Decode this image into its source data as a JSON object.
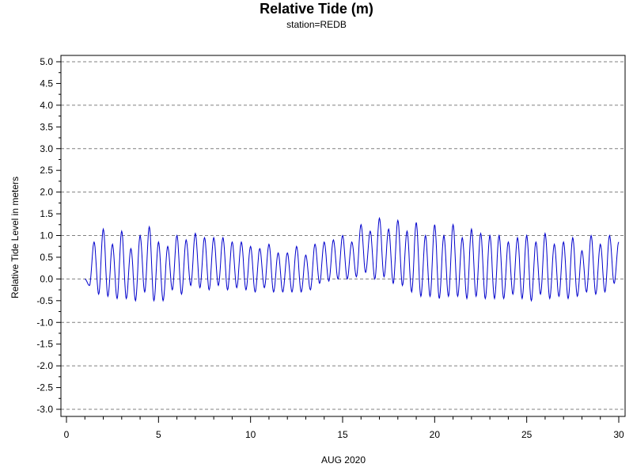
{
  "chart_data": {
    "type": "line",
    "title": "Relative Tide (m)",
    "subtitle": "station=REDB",
    "xlabel": "AUG 2020",
    "ylabel": "Relative Tide Level in meters",
    "xlim": [
      0,
      30
    ],
    "ylim": [
      -3.2,
      5.0
    ],
    "x_ticks": [
      0,
      5,
      10,
      15,
      20,
      25,
      30
    ],
    "y_ticks": [
      5.0,
      4.5,
      4.0,
      3.5,
      3.0,
      2.5,
      2.0,
      1.5,
      1.0,
      0.5,
      0.0,
      -0.5,
      -1.0,
      -1.5,
      -2.0,
      -2.5,
      -3.0
    ],
    "y_tick_labels": [
      "5.0",
      "4.5",
      "4.0",
      "3.5",
      "3.0",
      "2.5",
      "2.0",
      "1.5",
      "1.0",
      "0.5",
      "0.0",
      "-0.5",
      "-1.0",
      "-1.5",
      "-2.0",
      "-2.5",
      "-3.0"
    ],
    "grid_lines_y": [
      5.0,
      4.0,
      3.0,
      2.0,
      1.0,
      0.0,
      -1.0,
      -2.0,
      -3.0
    ],
    "grid": true,
    "series": [
      {
        "color": "#0000cc",
        "x": [
          1.0,
          1.25,
          1.5,
          1.75,
          2.0,
          2.25,
          2.5,
          2.75,
          3.0,
          3.25,
          3.5,
          3.75,
          4.0,
          4.25,
          4.5,
          4.75,
          5.0,
          5.25,
          5.5,
          5.75,
          6.0,
          6.25,
          6.5,
          6.75,
          7.0,
          7.25,
          7.5,
          7.75,
          8.0,
          8.25,
          8.5,
          8.75,
          9.0,
          9.25,
          9.5,
          9.75,
          10.0,
          10.25,
          10.5,
          10.75,
          11.0,
          11.25,
          11.5,
          11.75,
          12.0,
          12.25,
          12.5,
          12.75,
          13.0,
          13.25,
          13.5,
          13.75,
          14.0,
          14.25,
          14.5,
          14.75,
          15.0,
          15.25,
          15.5,
          15.75,
          16.0,
          16.25,
          16.5,
          16.75,
          17.0,
          17.25,
          17.5,
          17.75,
          18.0,
          18.25,
          18.5,
          18.75,
          19.0,
          19.25,
          19.5,
          19.75,
          20.0,
          20.25,
          20.5,
          20.75,
          21.0,
          21.25,
          21.5,
          21.75,
          22.0,
          22.25,
          22.5,
          22.75,
          23.0,
          23.25,
          23.5,
          23.75,
          24.0,
          24.25,
          24.5,
          24.75,
          25.0,
          25.25,
          25.5,
          25.75,
          26.0,
          26.25,
          26.5,
          26.75,
          27.0,
          27.25,
          27.5,
          27.75,
          28.0,
          28.25,
          28.5,
          28.75,
          29.0,
          29.25,
          29.5,
          29.75,
          30.0
        ],
        "y": [
          0.0,
          -0.15,
          0.85,
          -0.35,
          1.15,
          -0.4,
          0.8,
          -0.45,
          1.1,
          -0.45,
          0.7,
          -0.5,
          1.0,
          -0.3,
          1.2,
          -0.5,
          0.85,
          -0.5,
          0.75,
          -0.25,
          1.0,
          -0.35,
          0.9,
          -0.15,
          1.05,
          -0.2,
          0.95,
          -0.25,
          0.95,
          -0.15,
          0.95,
          -0.25,
          0.85,
          -0.2,
          0.85,
          -0.25,
          0.75,
          -0.3,
          0.7,
          -0.2,
          0.8,
          -0.3,
          0.6,
          -0.3,
          0.6,
          -0.3,
          0.75,
          -0.3,
          0.55,
          -0.25,
          0.8,
          -0.1,
          0.85,
          -0.05,
          0.9,
          0.0,
          1.0,
          0.0,
          0.85,
          0.05,
          1.25,
          0.15,
          1.1,
          0.0,
          1.4,
          0.05,
          1.15,
          -0.1,
          1.35,
          -0.15,
          1.1,
          -0.3,
          1.3,
          -0.4,
          1.0,
          -0.4,
          1.25,
          -0.45,
          1.0,
          -0.4,
          1.25,
          -0.4,
          0.95,
          -0.45,
          1.15,
          -0.4,
          1.05,
          -0.45,
          1.0,
          -0.45,
          1.0,
          -0.45,
          0.85,
          -0.35,
          0.95,
          -0.45,
          1.0,
          -0.5,
          0.85,
          -0.35,
          1.05,
          -0.45,
          0.8,
          -0.4,
          0.85,
          -0.45,
          0.95,
          -0.4,
          0.65,
          -0.3,
          1.0,
          -0.35,
          0.8,
          -0.3,
          1.0,
          -0.1,
          0.85
        ]
      }
    ]
  }
}
